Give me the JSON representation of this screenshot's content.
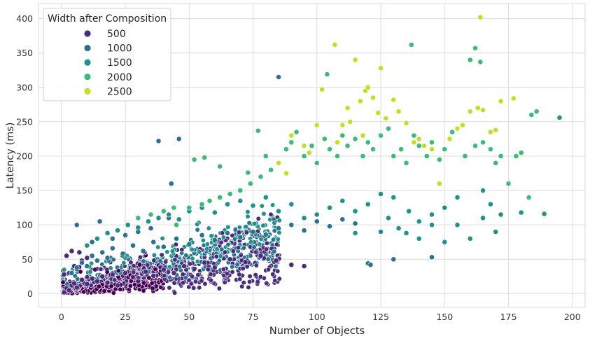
{
  "chart_data": {
    "type": "scatter",
    "xlabel": "Number of Objects",
    "ylabel": "Latency (ms)",
    "xlim": [
      -9,
      205
    ],
    "ylim": [
      -20,
      422
    ],
    "xticks": [
      0,
      25,
      50,
      75,
      100,
      125,
      150,
      175,
      200
    ],
    "yticks": [
      0,
      50,
      100,
      150,
      200,
      250,
      300,
      350,
      400
    ],
    "grid": true,
    "legend": {
      "title": "Width after Composition",
      "placement": "top-left",
      "entries": [
        "500",
        "1000",
        "1500",
        "2000",
        "2500"
      ]
    },
    "palette": {
      "500": "#472d7b",
      "1000": "#2c728e",
      "1500": "#21918c",
      "2000": "#3bbb75",
      "2500": "#c2df23",
      "low": "#440154"
    },
    "series": [
      {
        "name": "500",
        "color": "#472d7b",
        "points": [
          [
            1,
            2
          ],
          [
            2,
            8
          ],
          [
            3,
            5
          ],
          [
            4,
            12
          ],
          [
            5,
            15
          ],
          [
            6,
            9
          ],
          [
            8,
            20
          ],
          [
            10,
            14
          ],
          [
            12,
            22
          ],
          [
            14,
            18
          ],
          [
            16,
            25
          ],
          [
            18,
            16
          ],
          [
            20,
            28
          ],
          [
            22,
            12
          ],
          [
            25,
            30
          ],
          [
            28,
            24
          ],
          [
            30,
            18
          ],
          [
            33,
            32
          ],
          [
            36,
            26
          ],
          [
            40,
            35
          ],
          [
            44,
            30
          ],
          [
            48,
            40
          ],
          [
            52,
            36
          ],
          [
            56,
            45
          ],
          [
            60,
            38
          ],
          [
            66,
            50
          ],
          [
            72,
            46
          ],
          [
            78,
            55
          ],
          [
            84,
            48
          ],
          [
            90,
            42
          ],
          [
            95,
            40
          ],
          [
            5,
            40
          ],
          [
            8,
            48
          ],
          [
            3,
            30
          ],
          [
            6,
            36
          ],
          [
            2,
            55
          ],
          [
            4,
            62
          ],
          [
            1,
            28
          ],
          [
            10,
            52
          ],
          [
            7,
            60
          ]
        ]
      },
      {
        "name": "1000",
        "color": "#2c728e",
        "points": [
          [
            4,
            30
          ],
          [
            6,
            38
          ],
          [
            8,
            45
          ],
          [
            10,
            40
          ],
          [
            12,
            55
          ],
          [
            14,
            48
          ],
          [
            16,
            60
          ],
          [
            18,
            52
          ],
          [
            20,
            66
          ],
          [
            24,
            58
          ],
          [
            28,
            70
          ],
          [
            32,
            62
          ],
          [
            36,
            75
          ],
          [
            40,
            68
          ],
          [
            45,
            80
          ],
          [
            50,
            72
          ],
          [
            55,
            85
          ],
          [
            60,
            78
          ],
          [
            65,
            88
          ],
          [
            70,
            82
          ],
          [
            75,
            90
          ],
          [
            80,
            86
          ],
          [
            85,
            95
          ],
          [
            90,
            100
          ],
          [
            95,
            92
          ],
          [
            100,
            105
          ],
          [
            105,
            98
          ],
          [
            110,
            108
          ],
          [
            115,
            102
          ],
          [
            120,
            44
          ],
          [
            121,
            42
          ],
          [
            130,
            50
          ],
          [
            145,
            53
          ],
          [
            6,
            100
          ],
          [
            15,
            105
          ],
          [
            12,
            75
          ],
          [
            20,
            80
          ],
          [
            25,
            85
          ],
          [
            30,
            90
          ],
          [
            38,
            222
          ],
          [
            46,
            225
          ],
          [
            43,
            160
          ],
          [
            85,
            315
          ],
          [
            35,
            95
          ],
          [
            42,
            110
          ]
        ]
      },
      {
        "name": "1500",
        "color": "#21918c",
        "points": [
          [
            10,
            70
          ],
          [
            14,
            80
          ],
          [
            18,
            88
          ],
          [
            22,
            92
          ],
          [
            26,
            100
          ],
          [
            30,
            96
          ],
          [
            34,
            105
          ],
          [
            38,
            110
          ],
          [
            42,
            115
          ],
          [
            46,
            108
          ],
          [
            50,
            120
          ],
          [
            55,
            125
          ],
          [
            60,
            118
          ],
          [
            65,
            130
          ],
          [
            70,
            135
          ],
          [
            75,
            128
          ],
          [
            80,
            140
          ],
          [
            85,
            120
          ],
          [
            90,
            130
          ],
          [
            95,
            110
          ],
          [
            100,
            115
          ],
          [
            105,
            125
          ],
          [
            110,
            135
          ],
          [
            115,
            120
          ],
          [
            120,
            130
          ],
          [
            125,
            145
          ],
          [
            128,
            110
          ],
          [
            132,
            95
          ],
          [
            136,
            120
          ],
          [
            140,
            105
          ],
          [
            145,
            115
          ],
          [
            150,
            125
          ],
          [
            155,
            100
          ],
          [
            160,
            80
          ],
          [
            165,
            110
          ],
          [
            168,
            130
          ],
          [
            170,
            90
          ],
          [
            172,
            115
          ],
          [
            180,
            118
          ],
          [
            189,
            116
          ],
          [
            195,
            256
          ],
          [
            140,
            80
          ],
          [
            150,
            75
          ],
          [
            135,
            88
          ],
          [
            125,
            90
          ],
          [
            115,
            88
          ],
          [
            145,
            100
          ],
          [
            155,
            140
          ],
          [
            165,
            150
          ],
          [
            130,
            140
          ]
        ]
      },
      {
        "name": "2000",
        "color": "#3bbb75",
        "points": [
          [
            30,
            110
          ],
          [
            35,
            115
          ],
          [
            40,
            120
          ],
          [
            45,
            100
          ],
          [
            50,
            125
          ],
          [
            55,
            130
          ],
          [
            58,
            135
          ],
          [
            62,
            140
          ],
          [
            66,
            145
          ],
          [
            70,
            150
          ],
          [
            74,
            160
          ],
          [
            78,
            170
          ],
          [
            80,
            200
          ],
          [
            82,
            180
          ],
          [
            85,
            190
          ],
          [
            88,
            210
          ],
          [
            90,
            220
          ],
          [
            92,
            235
          ],
          [
            95,
            200
          ],
          [
            98,
            215
          ],
          [
            100,
            190
          ],
          [
            103,
            225
          ],
          [
            105,
            210
          ],
          [
            108,
            200
          ],
          [
            110,
            230
          ],
          [
            112,
            215
          ],
          [
            115,
            225
          ],
          [
            118,
            200
          ],
          [
            120,
            220
          ],
          [
            122,
            210
          ],
          [
            125,
            230
          ],
          [
            128,
            240
          ],
          [
            130,
            200
          ],
          [
            133,
            210
          ],
          [
            135,
            190
          ],
          [
            138,
            230
          ],
          [
            140,
            215
          ],
          [
            143,
            200
          ],
          [
            145,
            220
          ],
          [
            148,
            195
          ],
          [
            150,
            210
          ],
          [
            153,
            235
          ],
          [
            155,
            240
          ],
          [
            158,
            200
          ],
          [
            160,
            340
          ],
          [
            162,
            215
          ],
          [
            164,
            337
          ],
          [
            165,
            220
          ],
          [
            168,
            210
          ],
          [
            170,
            190
          ],
          [
            172,
            200
          ],
          [
            175,
            160
          ],
          [
            178,
            200
          ],
          [
            180,
            205
          ],
          [
            183,
            140
          ],
          [
            184,
            260
          ],
          [
            186,
            265
          ],
          [
            104,
            319
          ],
          [
            137,
            362
          ],
          [
            162,
            357
          ],
          [
            44,
            125
          ],
          [
            52,
            195
          ],
          [
            56,
            198
          ],
          [
            62,
            185
          ],
          [
            73,
            176
          ],
          [
            77,
            237
          ]
        ]
      },
      {
        "name": "2500",
        "color": "#c2df23",
        "points": [
          [
            90,
            230
          ],
          [
            95,
            215
          ],
          [
            100,
            245
          ],
          [
            102,
            297
          ],
          [
            107,
            362
          ],
          [
            110,
            245
          ],
          [
            113,
            250
          ],
          [
            115,
            340
          ],
          [
            117,
            280
          ],
          [
            119,
            295
          ],
          [
            120,
            300
          ],
          [
            122,
            285
          ],
          [
            124,
            263
          ],
          [
            125,
            328
          ],
          [
            127,
            255
          ],
          [
            130,
            282
          ],
          [
            132,
            265
          ],
          [
            135,
            248
          ],
          [
            138,
            220
          ],
          [
            140,
            225
          ],
          [
            142,
            215
          ],
          [
            145,
            210
          ],
          [
            148,
            160
          ],
          [
            152,
            225
          ],
          [
            155,
            240
          ],
          [
            157,
            245
          ],
          [
            160,
            265
          ],
          [
            163,
            270
          ],
          [
            164,
            402
          ],
          [
            165,
            267
          ],
          [
            168,
            235
          ],
          [
            170,
            238
          ],
          [
            172,
            280
          ],
          [
            177,
            284
          ],
          [
            85,
            190
          ],
          [
            88,
            175
          ],
          [
            97,
            205
          ],
          [
            108,
            220
          ],
          [
            112,
            270
          ],
          [
            118,
            230
          ]
        ]
      }
    ]
  }
}
